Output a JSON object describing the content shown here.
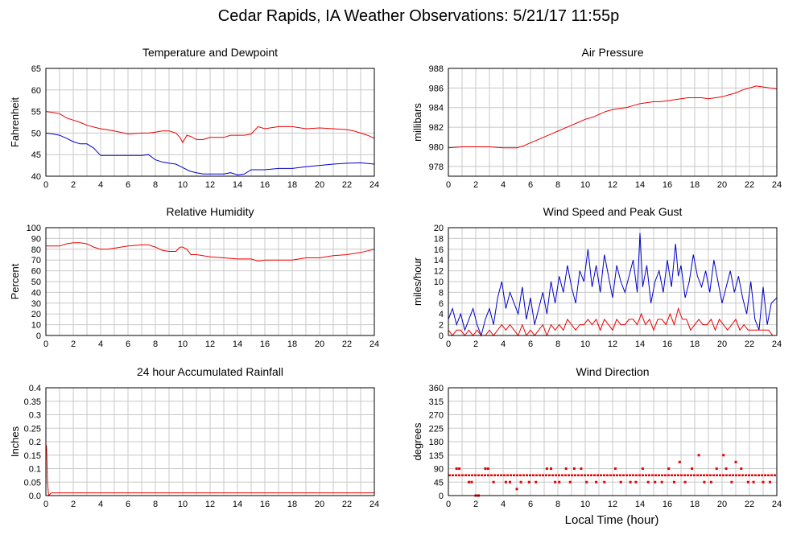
{
  "page": {
    "title": "Cedar Rapids, IA Weather Observations: 5/21/17 11:55p"
  },
  "xaxis_label": "Local Time (hour)",
  "colors": {
    "red": "#ee0000",
    "blue": "#0000cc",
    "grid": "#c8c8c8",
    "frame": "#000000"
  },
  "chart_data": [
    {
      "id": "temp",
      "type": "line",
      "title": "Temperature and Dewpoint",
      "ylabel": "Fahrenheit",
      "xlim": [
        0,
        24
      ],
      "ylim": [
        40,
        65
      ],
      "xticks": [
        0,
        2,
        4,
        6,
        8,
        10,
        12,
        14,
        16,
        18,
        20,
        22,
        24
      ],
      "yticks": [
        40,
        45,
        50,
        55,
        60,
        65
      ],
      "ytick_labels": [
        "40",
        "45",
        "50",
        "55",
        "60",
        "65"
      ],
      "grid": true,
      "series": [
        {
          "color": "#ee0000",
          "x": [
            0,
            0.5,
            1,
            1.5,
            2,
            2.5,
            3,
            4,
            5,
            6,
            7,
            7.5,
            8,
            8.5,
            9,
            9.5,
            9.8,
            10,
            10.3,
            10.6,
            11,
            11.5,
            12,
            12.5,
            13,
            13.5,
            14,
            14.5,
            15,
            15.5,
            16,
            17,
            18,
            19,
            20,
            21,
            22,
            22.5,
            23,
            23.5,
            24
          ],
          "y": [
            55,
            54.8,
            54.5,
            53.5,
            53,
            52.5,
            51.8,
            51,
            50.5,
            49.8,
            50,
            50,
            50.2,
            50.5,
            50.5,
            50,
            49,
            47.8,
            49.5,
            49.2,
            48.5,
            48.5,
            49,
            49,
            49,
            49.5,
            49.5,
            49.5,
            49.8,
            51.5,
            51,
            51.5,
            51.5,
            51,
            51.2,
            51,
            50.8,
            50.5,
            50,
            49.5,
            48.8
          ]
        },
        {
          "color": "#0000cc",
          "x": [
            0,
            0.5,
            1,
            1.5,
            2,
            2.5,
            3,
            3.5,
            4,
            5,
            6,
            7,
            7.5,
            8,
            8.5,
            9,
            9.5,
            10,
            10.5,
            11,
            11.5,
            12,
            12.5,
            13,
            13.5,
            14,
            14.5,
            15,
            15.5,
            16,
            17,
            18,
            19,
            20,
            21,
            22,
            23,
            24
          ],
          "y": [
            50,
            49.8,
            49.5,
            48.8,
            48,
            47.5,
            47.5,
            46.5,
            44.8,
            44.8,
            44.8,
            44.8,
            45,
            43.8,
            43.3,
            43,
            42.8,
            42,
            41.2,
            40.8,
            40.5,
            40.5,
            40.5,
            40.5,
            40.8,
            40.3,
            40.5,
            41.5,
            41.5,
            41.5,
            41.8,
            41.8,
            42.2,
            42.5,
            42.8,
            43,
            43.1,
            42.8
          ]
        }
      ]
    },
    {
      "id": "pressure",
      "type": "line",
      "title": "Air Pressure",
      "ylabel": "millibars",
      "xlim": [
        0,
        24
      ],
      "ylim": [
        977,
        988
      ],
      "xticks": [
        0,
        2,
        4,
        6,
        8,
        10,
        12,
        14,
        16,
        18,
        20,
        22,
        24
      ],
      "yticks": [
        978,
        980,
        982,
        984,
        986,
        988
      ],
      "ytick_labels": [
        "978",
        "980",
        "982",
        "984",
        "986",
        "988"
      ],
      "grid": true,
      "series": [
        {
          "color": "#ee0000",
          "x": [
            0,
            1,
            2,
            3,
            4,
            5,
            5.5,
            6,
            6.5,
            7,
            7.5,
            8,
            8.5,
            9,
            9.5,
            10,
            10.5,
            11,
            11.5,
            12,
            12.5,
            13,
            13.5,
            14,
            14.5,
            15,
            15.5,
            16,
            16.5,
            17,
            17.5,
            18,
            18.5,
            19,
            19.5,
            20,
            20.5,
            21,
            21.5,
            22,
            22.5,
            23,
            23.5,
            24
          ],
          "y": [
            979.9,
            980.0,
            980.0,
            980.0,
            979.9,
            979.9,
            980.1,
            980.4,
            980.7,
            981.0,
            981.3,
            981.6,
            981.9,
            982.2,
            982.5,
            982.8,
            983.0,
            983.3,
            983.6,
            983.8,
            983.9,
            984.0,
            984.2,
            984.4,
            984.5,
            984.6,
            984.6,
            984.7,
            984.8,
            984.9,
            985.0,
            985.0,
            985.0,
            984.9,
            985.0,
            985.1,
            985.3,
            985.5,
            985.8,
            986.0,
            986.2,
            986.1,
            986.0,
            985.9
          ]
        }
      ]
    },
    {
      "id": "humidity",
      "type": "line",
      "title": "Relative Humidity",
      "ylabel": "Percent",
      "xlim": [
        0,
        24
      ],
      "ylim": [
        0,
        100
      ],
      "xticks": [
        0,
        2,
        4,
        6,
        8,
        10,
        12,
        14,
        16,
        18,
        20,
        22,
        24
      ],
      "yticks": [
        0,
        10,
        20,
        30,
        40,
        50,
        60,
        70,
        80,
        90,
        100
      ],
      "ytick_labels": [
        "0",
        "10",
        "20",
        "30",
        "40",
        "50",
        "60",
        "70",
        "80",
        "90",
        "100"
      ],
      "grid": true,
      "series": [
        {
          "color": "#ee0000",
          "x": [
            0,
            1,
            1.5,
            2,
            2.5,
            3,
            3.5,
            4,
            4.5,
            5,
            5.5,
            6,
            7,
            7.5,
            8,
            8.5,
            9,
            9.5,
            9.8,
            10,
            10.3,
            10.6,
            11,
            12,
            13,
            14,
            15,
            15.5,
            16,
            17,
            18,
            19,
            20,
            21,
            22,
            23,
            24
          ],
          "y": [
            83,
            83,
            85,
            86,
            86,
            85,
            82,
            80,
            80,
            81,
            82,
            83,
            84,
            84,
            82,
            79,
            78,
            78,
            82,
            82,
            80,
            75,
            75,
            73,
            72,
            71,
            71,
            69,
            70,
            70,
            70,
            72,
            72,
            74,
            75,
            77,
            80
          ]
        }
      ]
    },
    {
      "id": "wind",
      "type": "line",
      "title": "Wind Speed and Peak Gust",
      "ylabel": "miles/hour",
      "xlim": [
        0,
        24
      ],
      "ylim": [
        0,
        20
      ],
      "xticks": [
        0,
        2,
        4,
        6,
        8,
        10,
        12,
        14,
        16,
        18,
        20,
        22,
        24
      ],
      "yticks": [
        0,
        2,
        4,
        6,
        8,
        10,
        12,
        14,
        16,
        18,
        20
      ],
      "ytick_labels": [
        "0",
        "2",
        "4",
        "6",
        "8",
        "10",
        "12",
        "14",
        "16",
        "18",
        "20"
      ],
      "grid": true,
      "series": [
        {
          "color": "#0000cc",
          "x": [
            0,
            0.3,
            0.6,
            0.9,
            1.2,
            1.5,
            1.8,
            2.1,
            2.4,
            2.7,
            3.0,
            3.3,
            3.6,
            3.9,
            4.2,
            4.5,
            4.8,
            5.1,
            5.4,
            5.7,
            6.0,
            6.3,
            6.6,
            6.9,
            7.2,
            7.5,
            7.8,
            8.1,
            8.4,
            8.7,
            9.0,
            9.3,
            9.6,
            9.9,
            10.2,
            10.5,
            10.8,
            11.1,
            11.4,
            11.7,
            12.0,
            12.3,
            12.6,
            12.9,
            13.2,
            13.5,
            13.8,
            14.0,
            14.2,
            14.5,
            14.8,
            15.1,
            15.4,
            15.7,
            16.0,
            16.3,
            16.6,
            16.8,
            17.0,
            17.3,
            17.6,
            17.9,
            18.2,
            18.5,
            18.8,
            19.1,
            19.4,
            19.7,
            20.0,
            20.3,
            20.6,
            20.9,
            21.2,
            21.5,
            21.8,
            22.1,
            22.4,
            22.7,
            23.0,
            23.3,
            23.6,
            24
          ],
          "y": [
            3,
            5,
            2,
            4,
            1,
            3,
            5,
            2,
            0,
            3,
            5,
            2,
            7,
            10,
            5,
            8,
            6,
            4,
            9,
            3,
            7,
            2,
            5,
            8,
            4,
            10,
            6,
            11,
            8,
            13,
            9,
            6,
            12,
            10,
            16,
            9,
            13,
            8,
            15,
            11,
            7,
            13,
            10,
            8,
            11,
            14,
            8,
            19,
            9,
            13,
            6,
            10,
            12,
            8,
            14,
            9,
            17,
            11,
            13,
            7,
            10,
            15,
            11,
            9,
            12,
            8,
            14,
            10,
            6,
            9,
            12,
            8,
            11,
            7,
            4,
            10,
            3,
            1,
            9,
            2,
            6,
            7
          ]
        },
        {
          "color": "#ee0000",
          "x": [
            0,
            0.3,
            0.6,
            0.9,
            1.2,
            1.5,
            1.8,
            2.1,
            2.4,
            2.7,
            3.0,
            3.3,
            3.6,
            3.9,
            4.2,
            4.5,
            4.8,
            5.1,
            5.4,
            5.7,
            6.0,
            6.3,
            6.6,
            6.9,
            7.2,
            7.5,
            7.8,
            8.1,
            8.4,
            8.7,
            9.0,
            9.3,
            9.6,
            9.9,
            10.2,
            10.5,
            10.8,
            11.1,
            11.4,
            11.7,
            12.0,
            12.3,
            12.6,
            12.9,
            13.2,
            13.5,
            13.8,
            14.1,
            14.4,
            14.7,
            15.0,
            15.3,
            15.6,
            15.9,
            16.2,
            16.5,
            16.8,
            17.1,
            17.4,
            17.7,
            18.0,
            18.3,
            18.6,
            18.9,
            19.2,
            19.5,
            19.8,
            20.1,
            20.4,
            20.7,
            21.0,
            21.3,
            21.6,
            21.9,
            22.2,
            22.5,
            22.8,
            23.1,
            23.4,
            23.7,
            24
          ],
          "y": [
            1,
            0,
            1,
            1,
            0,
            1,
            0,
            1,
            0,
            0,
            1,
            0,
            1,
            2,
            1,
            2,
            1,
            0,
            2,
            0,
            1,
            0,
            1,
            2,
            0,
            2,
            1,
            2,
            1,
            3,
            2,
            1,
            2,
            2,
            3,
            2,
            3,
            1,
            3,
            2,
            1,
            3,
            2,
            2,
            3,
            3,
            2,
            4,
            2,
            3,
            1,
            3,
            3,
            2,
            4,
            2,
            5,
            3,
            3,
            1,
            2,
            3,
            2,
            2,
            3,
            1,
            3,
            2,
            1,
            2,
            3,
            1,
            2,
            1,
            1,
            1,
            1,
            1,
            1,
            0,
            0
          ]
        }
      ]
    },
    {
      "id": "rain",
      "type": "line",
      "title": "24 hour Accumulated Rainfall",
      "ylabel": "Inches",
      "xlim": [
        0,
        24
      ],
      "ylim": [
        0,
        0.4
      ],
      "xticks": [
        0,
        2,
        4,
        6,
        8,
        10,
        12,
        14,
        16,
        18,
        20,
        22,
        24
      ],
      "yticks": [
        0,
        0.05,
        0.1,
        0.15,
        0.2,
        0.25,
        0.3,
        0.35,
        0.4
      ],
      "ytick_labels": [
        "0.0",
        "0.05",
        "0.1",
        "0.15",
        "0.2",
        "0.25",
        "0.3",
        "0.35",
        "0.4"
      ],
      "grid": true,
      "series": [
        {
          "color": "#ee0000",
          "x": [
            0,
            0.05,
            0.12,
            0.2,
            0.4,
            2,
            4,
            6,
            8,
            10,
            12,
            14,
            16,
            18,
            20,
            22,
            24
          ],
          "y": [
            0.19,
            0.18,
            0.05,
            0.0,
            0.01,
            0.01,
            0.01,
            0.01,
            0.01,
            0.01,
            0.01,
            0.01,
            0.01,
            0.01,
            0.01,
            0.01,
            0.01
          ]
        }
      ]
    },
    {
      "id": "direction",
      "type": "scatter",
      "title": "Wind Direction",
      "ylabel": "degrees",
      "xlabel": "Local Time (hour)",
      "xlim": [
        0,
        24
      ],
      "ylim": [
        0,
        360
      ],
      "xticks": [
        0,
        2,
        4,
        6,
        8,
        10,
        12,
        14,
        16,
        18,
        20,
        22,
        24
      ],
      "yticks": [
        0,
        45,
        90,
        135,
        180,
        225,
        270,
        315,
        360
      ],
      "ytick_labels": [
        "0",
        "45",
        "90",
        "135",
        "180",
        "225",
        "270",
        "315",
        "360"
      ],
      "grid": true,
      "baseline": {
        "y": 68,
        "x": [
          0,
          24
        ],
        "color": "#ee0000"
      },
      "series": [
        {
          "color": "#ee0000",
          "x": [
            0.6,
            0.8,
            1.5,
            1.7,
            2.0,
            2.2,
            2.7,
            2.9,
            3.3,
            4.2,
            4.5,
            5.0,
            5.3,
            5.9,
            6.4,
            7.2,
            7.5,
            7.8,
            8.1,
            8.6,
            8.9,
            9.2,
            9.7,
            10.1,
            10.8,
            11.4,
            12.2,
            12.6,
            13.3,
            13.7,
            14.2,
            14.6,
            15.1,
            15.6,
            16.1,
            16.5,
            16.9,
            17.3,
            17.8,
            18.3,
            18.7,
            19.2,
            19.6,
            20.1,
            20.3,
            20.7,
            21.0,
            21.4,
            21.9,
            22.3,
            23.0,
            23.5
          ],
          "y": [
            90,
            90,
            45,
            45,
            0,
            0,
            90,
            90,
            45,
            45,
            45,
            22,
            45,
            45,
            45,
            90,
            90,
            45,
            45,
            90,
            45,
            90,
            90,
            45,
            45,
            45,
            90,
            45,
            45,
            45,
            90,
            45,
            45,
            45,
            90,
            45,
            112,
            45,
            90,
            135,
            45,
            45,
            90,
            135,
            90,
            45,
            112,
            90,
            45,
            45,
            45,
            45
          ]
        }
      ]
    }
  ]
}
